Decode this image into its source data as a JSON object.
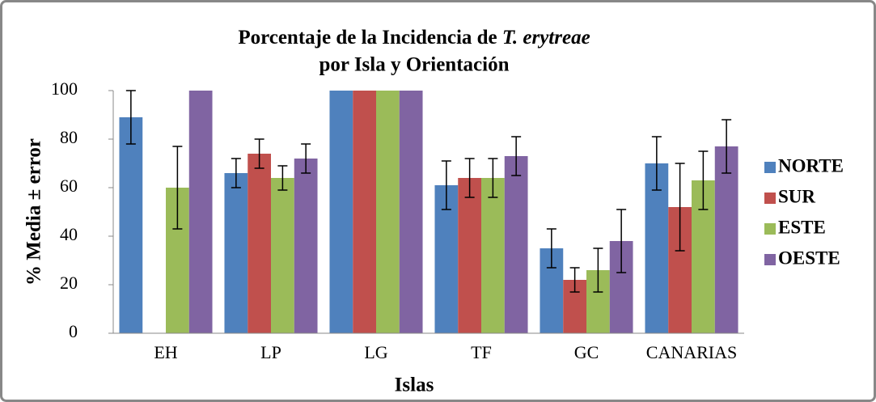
{
  "chart_data": {
    "type": "bar",
    "title": [
      "Porcentaje de la Incidencia de",
      "T. erytreae",
      "por Isla y Orientación"
    ],
    "x_label": "Islas",
    "y_label": "% Media ± error",
    "categories": [
      "EH",
      "LP",
      "LG",
      "TF",
      "GC",
      "CANARIAS"
    ],
    "series": [
      {
        "name": "NORTE",
        "color": "#4f81bd",
        "values": [
          89,
          66,
          100,
          61,
          35,
          70
        ],
        "errors": [
          11,
          6,
          0,
          10,
          8,
          11
        ]
      },
      {
        "name": "SUR",
        "color": "#c0504d",
        "values": [
          0,
          74,
          100,
          64,
          22,
          52
        ],
        "errors": [
          0,
          6,
          0,
          8,
          5,
          18
        ]
      },
      {
        "name": "ESTE",
        "color": "#9bbb59",
        "values": [
          60,
          64,
          100,
          64,
          26,
          63
        ],
        "errors": [
          17,
          5,
          0,
          8,
          9,
          12
        ]
      },
      {
        "name": "OESTE",
        "color": "#8064a2",
        "values": [
          100,
          72,
          100,
          73,
          38,
          77
        ],
        "errors": [
          0,
          6,
          0,
          8,
          13,
          11
        ]
      }
    ],
    "ylim": [
      0,
      100
    ],
    "yticks": [
      0,
      20,
      40,
      60,
      80,
      100
    ],
    "legend": "right"
  }
}
